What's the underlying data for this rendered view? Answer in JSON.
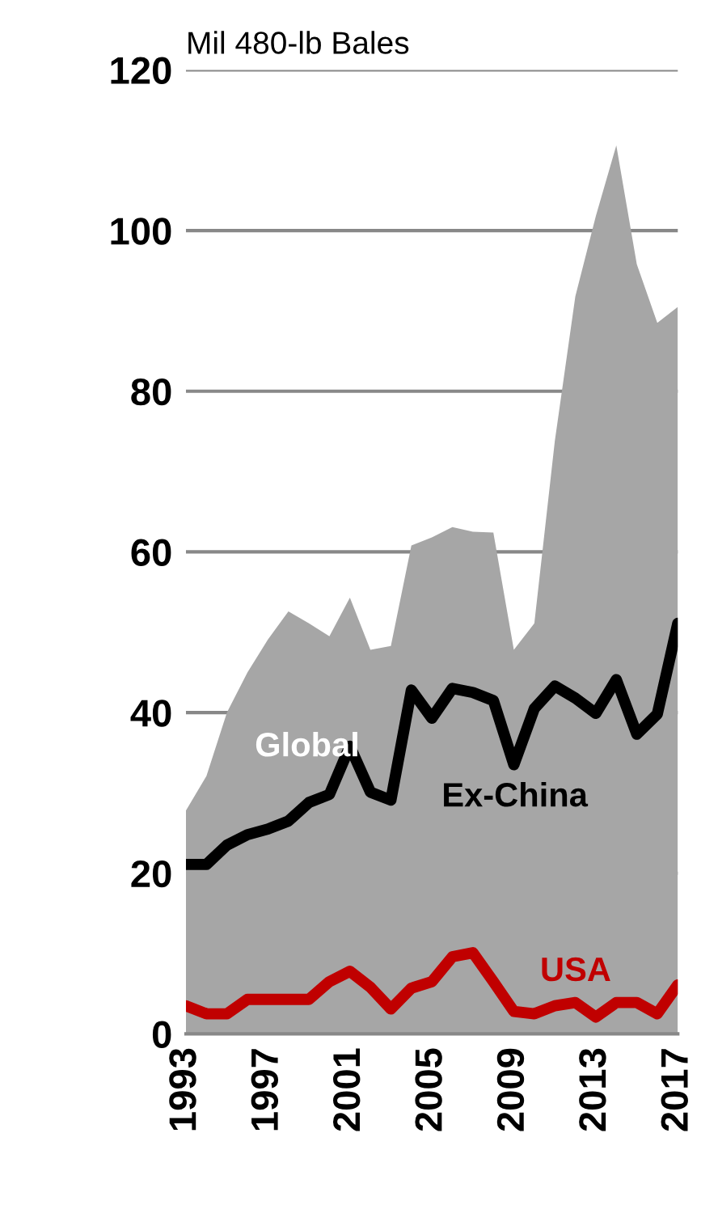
{
  "chart_data": {
    "type": "line",
    "ylabel": "Mil 480-lb Bales",
    "x": [
      1993,
      1994,
      1995,
      1996,
      1997,
      1998,
      1999,
      2000,
      2001,
      2002,
      2003,
      2004,
      2005,
      2006,
      2007,
      2008,
      2009,
      2010,
      2011,
      2012,
      2013,
      2014,
      2015,
      2016,
      2017
    ],
    "series": [
      {
        "name": "Global",
        "type": "area",
        "color": "#a6a6a6",
        "values": [
          27.8,
          32.1,
          40,
          45,
          49.1,
          52.6,
          51.1,
          49.5,
          54.3,
          47.8,
          48.3,
          60.8,
          61.8,
          63.1,
          62.5,
          62.4,
          47.8,
          51.1,
          73.8,
          91.8,
          101.8,
          110.6,
          95.8,
          88.5,
          90.5
        ]
      },
      {
        "name": "Ex-China",
        "color": "#000000",
        "values": [
          21.1,
          21.1,
          23.5,
          24.8,
          25.5,
          26.5,
          28.8,
          29.8,
          35.8,
          30.1,
          29.1,
          42.8,
          39.3,
          43.0,
          42.5,
          41.5,
          33.5,
          40.5,
          43.3,
          41.8,
          39.9,
          44.1,
          37.3,
          39.8,
          51.1
        ]
      },
      {
        "name": "USA",
        "color": "#c00000",
        "values": [
          3.5,
          2.5,
          2.5,
          4.3,
          4.3,
          4.3,
          4.3,
          6.5,
          7.8,
          5.8,
          3.1,
          5.7,
          6.5,
          9.6,
          10.1,
          6.5,
          2.8,
          2.5,
          3.5,
          3.9,
          2.1,
          3.9,
          3.9,
          2.5,
          6.1
        ]
      }
    ],
    "xlim": [
      1993,
      2017
    ],
    "ylim": [
      0,
      120
    ],
    "xticks": [
      1993,
      1997,
      2001,
      2005,
      2009,
      2013,
      2017
    ],
    "yticks": [
      0,
      20,
      40,
      60,
      80,
      100,
      120
    ],
    "grid": "y",
    "legend": false
  }
}
